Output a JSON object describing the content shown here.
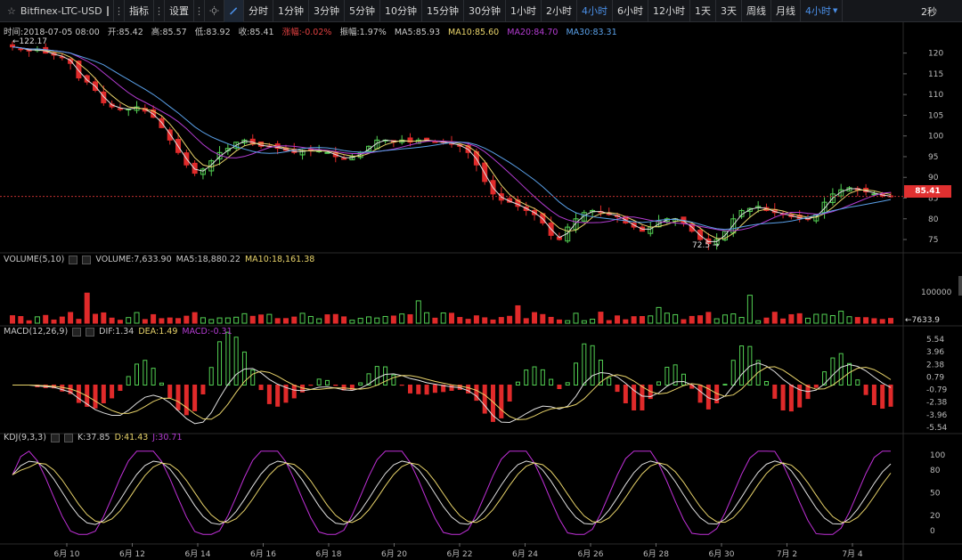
{
  "toolbar": {
    "symbol": "Bitfinex-LTC-USD",
    "indicator_label": "指标",
    "settings_label": "设置",
    "intervals": [
      "分时",
      "1分钟",
      "3分钟",
      "5分钟",
      "10分钟",
      "15分钟",
      "30分钟",
      "1小时",
      "2小时",
      "4小时",
      "6小时",
      "12小时",
      "1天",
      "3天",
      "周线",
      "月线"
    ],
    "active_interval": "4小时",
    "dropdown_label": "4小时",
    "refresh_label": "2秒"
  },
  "info": {
    "time": "时间:2018-07-05 08:00",
    "open": "开:85.42",
    "high": "高:85.57",
    "low": "低:83.92",
    "close": "收:85.41",
    "change": "涨幅:-0.02%",
    "amplitude": "振幅:1.97%",
    "ma5": "MA5:85.93",
    "ma10": "MA10:85.60",
    "ma20": "MA20:84.70",
    "ma30": "MA30:83.31"
  },
  "price_labels": {
    "high_marker": "←122.17",
    "low_marker": "72.5 →",
    "current_price": "85.41",
    "volume_marker": "←7633.9"
  },
  "volume_header": {
    "title": "VOLUME(5,10)",
    "volume": "VOLUME:7,633.90",
    "ma5": "MA5:18,880.22",
    "ma10": "MA10:18,161.38"
  },
  "macd_header": {
    "title": "MACD(12,26,9)",
    "dif": "DIF:1.34",
    "dea": "DEA:1.49",
    "macd": "MACD:-0.31"
  },
  "kdj_header": {
    "title": "KDJ(9,3,3)",
    "k": "K:37.85",
    "d": "D:41.43",
    "j": "J:30.71"
  },
  "colors": {
    "up": "#53d053",
    "down": "#e02a2a",
    "ma5": "#e0e0e0",
    "ma10": "#e8d36a",
    "ma20": "#b43cd2",
    "ma30": "#5aa0e8",
    "accent": "#4a8fe7"
  },
  "chart_data": {
    "type": "candlestick",
    "price_axis": [
      120,
      115,
      110,
      105,
      100,
      95,
      90,
      85,
      80,
      75
    ],
    "price_range": [
      72,
      124
    ],
    "volume_axis": [
      "100000"
    ],
    "macd_axis": [
      "5.54",
      "3.96",
      "2.38",
      "0.79",
      "-0.79",
      "-2.38",
      "-3.96",
      "-5.54"
    ],
    "kdj_axis": [
      "100",
      "80",
      "50",
      "20",
      "0"
    ],
    "date_labels": [
      "6月 10",
      "6月 12",
      "6月 14",
      "6月 16",
      "6月 18",
      "6月 20",
      "6月 22",
      "6月 24",
      "6月 26",
      "6月 28",
      "6月 30",
      "7月 2",
      "7月 4"
    ],
    "close_path": [
      121.5,
      121,
      120.5,
      121,
      120,
      119.5,
      119,
      117.5,
      114,
      113,
      111,
      108,
      107,
      106.5,
      106.5,
      107,
      106,
      104.5,
      102,
      99,
      96,
      93,
      91,
      92,
      94,
      96,
      97,
      98.5,
      99,
      98,
      97.5,
      97.5,
      97,
      96.5,
      96,
      96.5,
      96.5,
      96.5,
      96,
      95,
      94.5,
      95,
      96,
      97.5,
      99,
      99,
      98.5,
      99,
      98.5,
      99,
      99,
      98.5,
      98.5,
      98,
      97.5,
      96,
      93,
      89,
      86,
      84.5,
      84,
      83,
      82,
      81,
      79,
      76,
      75,
      78,
      80,
      81.5,
      82,
      81.5,
      81,
      80.5,
      79,
      78,
      77,
      78,
      79.5,
      80,
      80,
      79,
      77,
      75,
      74,
      75,
      77,
      80,
      82,
      82.5,
      83,
      82,
      81.5,
      81,
      80.5,
      80,
      80,
      81,
      84,
      86,
      87,
      87.5,
      87,
      86.5,
      86,
      85.5,
      85.4
    ]
  }
}
